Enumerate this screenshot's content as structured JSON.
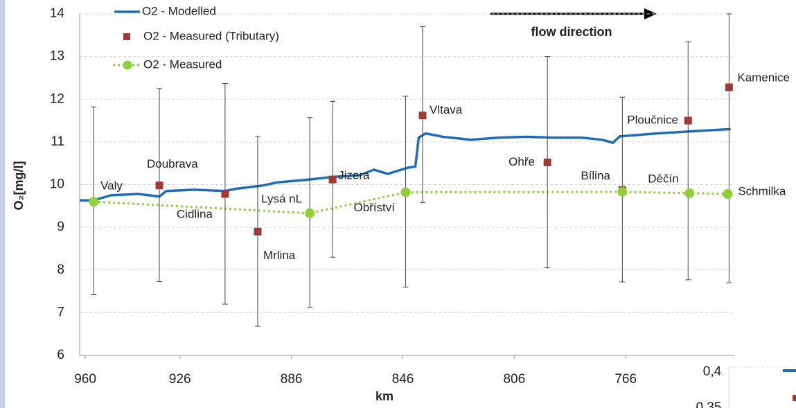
{
  "chart_data": {
    "type": "line",
    "x_label": "km",
    "y_label": "O₂[mg/l]",
    "annotation": "flow direction",
    "xlim": [
      962,
      727
    ],
    "xticks": [
      960,
      926,
      886,
      846,
      806,
      766
    ],
    "ylim": [
      6,
      14
    ],
    "yticks": [
      6,
      7,
      8,
      9,
      10,
      11,
      12,
      13,
      14
    ],
    "grid": true,
    "legend": "top-left",
    "series": [
      {
        "name": "O2 - Modelled",
        "color": "#1f6cb8",
        "style": "line",
        "x": [
          962,
          957,
          950.8,
          940.9,
          933.4,
          930.9,
          921,
          909.8,
          906.1,
          896.1,
          891.2,
          879.5,
          871.3,
          861.4,
          856.4,
          851.4,
          844,
          841.5,
          840.3,
          837.8,
          831.6,
          821.6,
          811.7,
          801.7,
          791.8,
          781.8,
          774.3,
          770.6,
          768.1,
          754.4,
          742,
          728.3
        ],
        "values": [
          9.63,
          9.63,
          9.75,
          9.78,
          9.72,
          9.85,
          9.88,
          9.85,
          9.9,
          9.98,
          10.05,
          10.12,
          10.18,
          10.22,
          10.35,
          10.25,
          10.4,
          10.42,
          11.1,
          11.2,
          11.12,
          11.05,
          11.1,
          11.12,
          11.1,
          11.1,
          11.05,
          10.98,
          11.13,
          11.2,
          11.25,
          11.3
        ]
      },
      {
        "name": "O2 - Measured (Tributary)",
        "color": "#a03a32",
        "style": "markers",
        "x": [
          933.4,
          909.8,
          898.1,
          871.2,
          838.9,
          794.1,
          767.2,
          743.6,
          728.9
        ],
        "values": [
          9.98,
          9.78,
          8.9,
          10.12,
          11.62,
          10.52,
          9.87,
          11.5,
          12.28
        ],
        "lower": [
          7.73,
          7.2,
          6.68,
          8.3,
          9.58,
          8.05,
          7.72,
          7.77,
          7.7
        ],
        "upper": [
          12.25,
          12.37,
          11.13,
          11.95,
          13.7,
          13.0,
          12.05,
          13.35,
          14.0
        ],
        "labels": [
          "Doubrava",
          "Cidlina",
          "Mrlina",
          "Jizera",
          "Vltava",
          "Ohře",
          "Bílina",
          "Ploučnice",
          "Kamenice"
        ]
      },
      {
        "name": "O2 - Measured",
        "color": "#8fcf3c",
        "style": "line-markers",
        "x": [
          957,
          879.4,
          845,
          767.2,
          743.1,
          729.4
        ],
        "values": [
          9.6,
          9.33,
          9.82,
          9.83,
          9.8,
          9.78
        ],
        "lower": [
          7.42,
          7.12,
          7.6,
          null,
          null,
          null
        ],
        "upper": [
          11.82,
          11.57,
          12.07,
          null,
          null,
          null
        ],
        "labels": [
          "Valy",
          "Lysá nL",
          "Obříství",
          null,
          "Děčín",
          "Schmilka"
        ]
      }
    ],
    "inset_tick_labels": [
      "0,4",
      "0,35"
    ]
  }
}
